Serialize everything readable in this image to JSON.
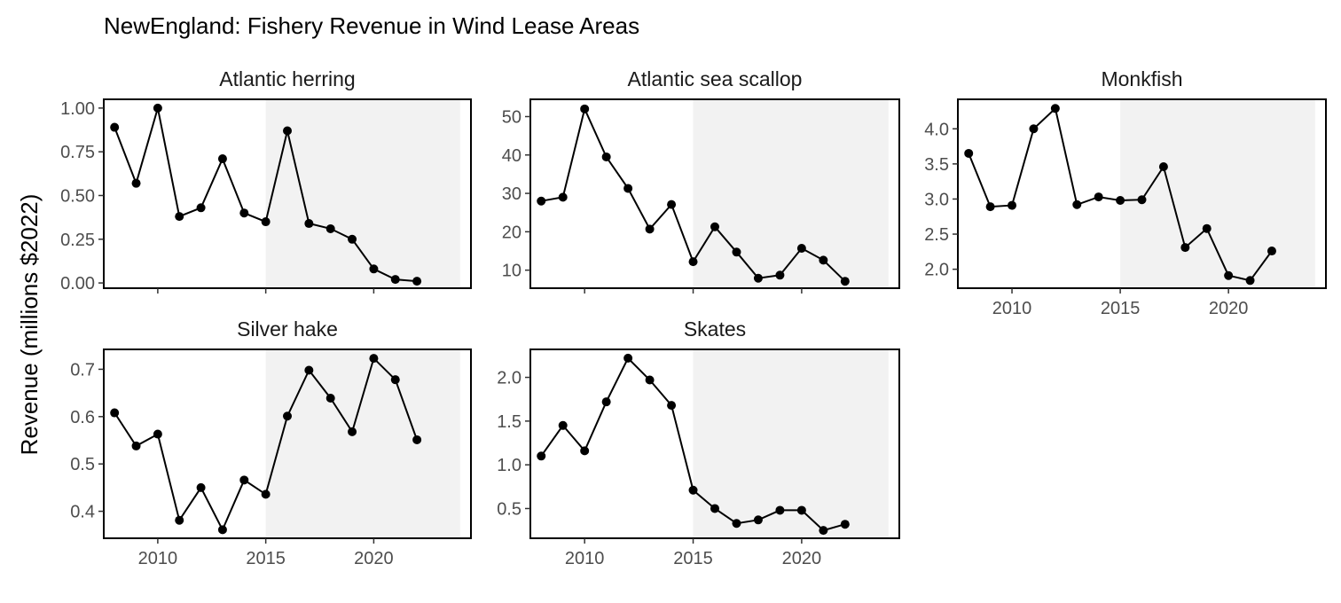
{
  "chart_data": {
    "type": "line",
    "title": "NewEngland: Fishery Revenue in Wind Lease Areas",
    "ylabel": "Revenue (millions $2022)",
    "xlabel": "",
    "xlim": [
      2007.5,
      2024.5
    ],
    "x_ticks": [
      2010,
      2015,
      2020
    ],
    "shaded_region": {
      "from": 2015,
      "to": 2024,
      "color": "#f2f2f2"
    },
    "x": [
      2008,
      2009,
      2010,
      2011,
      2012,
      2013,
      2014,
      2015,
      2016,
      2017,
      2018,
      2019,
      2020,
      2021,
      2022
    ],
    "line_color": "#000000",
    "point_color": "#000000",
    "panels": [
      {
        "name": "Atlantic herring",
        "ylim": [
          -0.03,
          1.05
        ],
        "y_ticks": [
          "0.00",
          "0.25",
          "0.50",
          "0.75",
          "1.00"
        ],
        "values": [
          0.89,
          0.57,
          1.0,
          0.38,
          0.43,
          0.71,
          0.4,
          0.35,
          0.87,
          0.34,
          0.31,
          0.25,
          0.08,
          0.02,
          0.01
        ]
      },
      {
        "name": "Atlantic sea scallop",
        "ylim": [
          5.3,
          54.5
        ],
        "y_ticks": [
          "10",
          "20",
          "30",
          "40",
          "50"
        ],
        "values": [
          28,
          29,
          52,
          39.5,
          31.3,
          20.7,
          27.1,
          12.2,
          21.3,
          14.7,
          7.9,
          8.7,
          15.7,
          12.6,
          7.1
        ]
      },
      {
        "name": "Monkfish",
        "ylim": [
          1.73,
          4.42
        ],
        "y_ticks": [
          "2.0",
          "2.5",
          "3.0",
          "3.5",
          "4.0"
        ],
        "values": [
          3.65,
          2.89,
          2.91,
          4.0,
          4.29,
          2.92,
          3.03,
          2.98,
          2.99,
          3.46,
          2.31,
          2.58,
          1.91,
          1.84,
          2.26
        ]
      },
      {
        "name": "Silver hake",
        "ylim": [
          0.343,
          0.742
        ],
        "y_ticks": [
          "0.4",
          "0.5",
          "0.6",
          "0.7"
        ],
        "values": [
          0.608,
          0.538,
          0.563,
          0.381,
          0.45,
          0.361,
          0.466,
          0.436,
          0.601,
          0.698,
          0.639,
          0.568,
          0.723,
          0.678,
          0.551
        ]
      },
      {
        "name": "Skates",
        "ylim": [
          0.16,
          2.32
        ],
        "y_ticks": [
          "0.5",
          "1.0",
          "1.5",
          "2.0"
        ],
        "values": [
          1.1,
          1.45,
          1.16,
          1.72,
          2.22,
          1.97,
          1.68,
          0.71,
          0.5,
          0.33,
          0.37,
          0.48,
          0.48,
          0.25,
          0.32
        ]
      }
    ]
  }
}
